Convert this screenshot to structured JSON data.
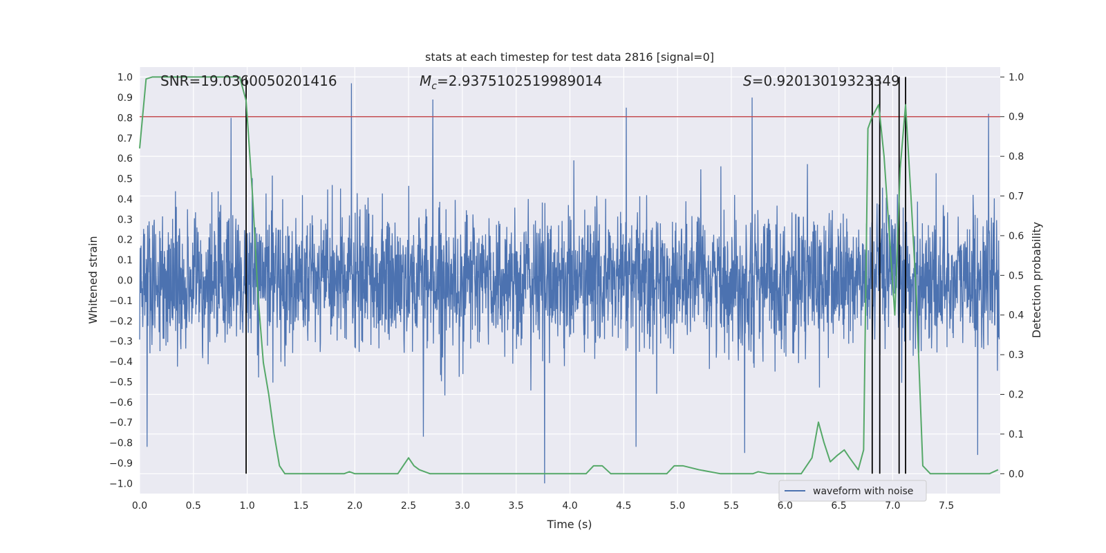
{
  "chart_data": {
    "type": "line",
    "title": "stats at each timestep for test data 2816 [signal=0]",
    "xlabel": "Time (s)",
    "ylabel_left": "Whitened strain",
    "ylabel_right": "Detection probability",
    "xlim": [
      0.0,
      8.0
    ],
    "ylim_left": [
      -1.05,
      1.05
    ],
    "ylim_right": [
      -0.05,
      1.025
    ],
    "x_ticks": [
      "0.0",
      "0.5",
      "1.0",
      "1.5",
      "2.0",
      "2.5",
      "3.0",
      "3.5",
      "4.0",
      "4.5",
      "5.0",
      "5.5",
      "6.0",
      "6.5",
      "7.0",
      "7.5"
    ],
    "y_left_ticks": [
      "1.0",
      "0.9",
      "0.8",
      "0.7",
      "0.6",
      "0.5",
      "0.4",
      "0.3",
      "0.2",
      "0.1",
      "0.0",
      "-0.1",
      "-0.2",
      "-0.3",
      "-0.4",
      "-0.5",
      "-0.6",
      "-0.7",
      "-0.8",
      "-0.9",
      "-1.0"
    ],
    "y_right_ticks": [
      "1.0",
      "0.9",
      "0.8",
      "0.7",
      "0.6",
      "0.5",
      "0.4",
      "0.3",
      "0.2",
      "0.1",
      "0.0"
    ],
    "grid": true,
    "annotations": {
      "snr": "SNR=19.0360050201416",
      "mc_symbol": "M",
      "mc_sub": "c",
      "mc_value": "=2.9375102519989014",
      "s_symbol": "S",
      "s_value": "=0.92013019323349"
    },
    "threshold": {
      "value": 0.9,
      "axis": "right",
      "color": "#c44e52"
    },
    "detection_lines_x": [
      0.99,
      6.81,
      6.88,
      7.06,
      7.12
    ],
    "legend": {
      "label": "waveform with noise",
      "placement": "lower-right"
    },
    "series": [
      {
        "name": "waveform with noise",
        "axis": "left",
        "color": "#4c72b0",
        "kind": "noise",
        "n_samples": 3000,
        "approx_core_amplitude": 0.4,
        "peak_spikes": [
          {
            "x": 0.85,
            "y": 0.8
          },
          {
            "x": 1.97,
            "y": 0.97
          },
          {
            "x": 2.73,
            "y": 0.89
          },
          {
            "x": 4.53,
            "y": 0.85
          },
          {
            "x": 5.7,
            "y": 0.9
          },
          {
            "x": 7.9,
            "y": 0.82
          },
          {
            "x": 3.77,
            "y": -1.0
          },
          {
            "x": 0.07,
            "y": -0.82
          },
          {
            "x": 4.62,
            "y": -0.82
          },
          {
            "x": 2.64,
            "y": -0.77
          },
          {
            "x": 7.8,
            "y": -0.86
          },
          {
            "x": 5.63,
            "y": -0.85
          }
        ]
      },
      {
        "name": "detection probability",
        "axis": "right",
        "color": "#55a868",
        "x": [
          0.0,
          0.06,
          0.12,
          0.2,
          0.3,
          0.5,
          0.7,
          0.93,
          0.99,
          1.05,
          1.1,
          1.15,
          1.2,
          1.25,
          1.3,
          1.35,
          1.4,
          1.5,
          1.6,
          1.7,
          1.8,
          1.9,
          1.95,
          2.0,
          2.05,
          2.1,
          2.2,
          2.3,
          2.4,
          2.45,
          2.5,
          2.55,
          2.6,
          2.7,
          2.8,
          3.0,
          3.2,
          3.4,
          3.6,
          3.7,
          3.8,
          4.0,
          4.15,
          4.22,
          4.3,
          4.38,
          4.5,
          4.7,
          4.9,
          4.97,
          5.05,
          5.2,
          5.4,
          5.6,
          5.7,
          5.75,
          5.85,
          6.0,
          6.15,
          6.25,
          6.31,
          6.36,
          6.42,
          6.48,
          6.55,
          6.6,
          6.68,
          6.73,
          6.77,
          6.81,
          6.87,
          6.92,
          6.97,
          7.02,
          7.07,
          7.12,
          7.17,
          7.22,
          7.28,
          7.35,
          7.45,
          7.6,
          7.75,
          7.9,
          7.98
        ],
        "values": [
          0.82,
          0.995,
          1.0,
          1.0,
          1.0,
          1.0,
          1.0,
          1.0,
          0.94,
          0.7,
          0.45,
          0.28,
          0.2,
          0.1,
          0.02,
          0.0,
          0.0,
          0.0,
          0.0,
          0.0,
          0.0,
          0.0,
          0.005,
          0.0,
          0.0,
          0.0,
          0.0,
          0.0,
          0.0,
          0.02,
          0.04,
          0.02,
          0.01,
          0.0,
          0.0,
          0.0,
          0.0,
          0.0,
          0.0,
          0.0,
          0.0,
          0.0,
          0.0,
          0.02,
          0.02,
          0.0,
          0.0,
          0.0,
          0.0,
          0.02,
          0.02,
          0.01,
          0.0,
          0.0,
          0.0,
          0.005,
          0.0,
          0.0,
          0.0,
          0.04,
          0.13,
          0.08,
          0.03,
          0.045,
          0.06,
          0.04,
          0.01,
          0.06,
          0.87,
          0.9,
          0.93,
          0.8,
          0.6,
          0.4,
          0.77,
          0.93,
          0.7,
          0.45,
          0.02,
          0.0,
          0.0,
          0.0,
          0.0,
          0.0,
          0.01
        ]
      }
    ]
  }
}
